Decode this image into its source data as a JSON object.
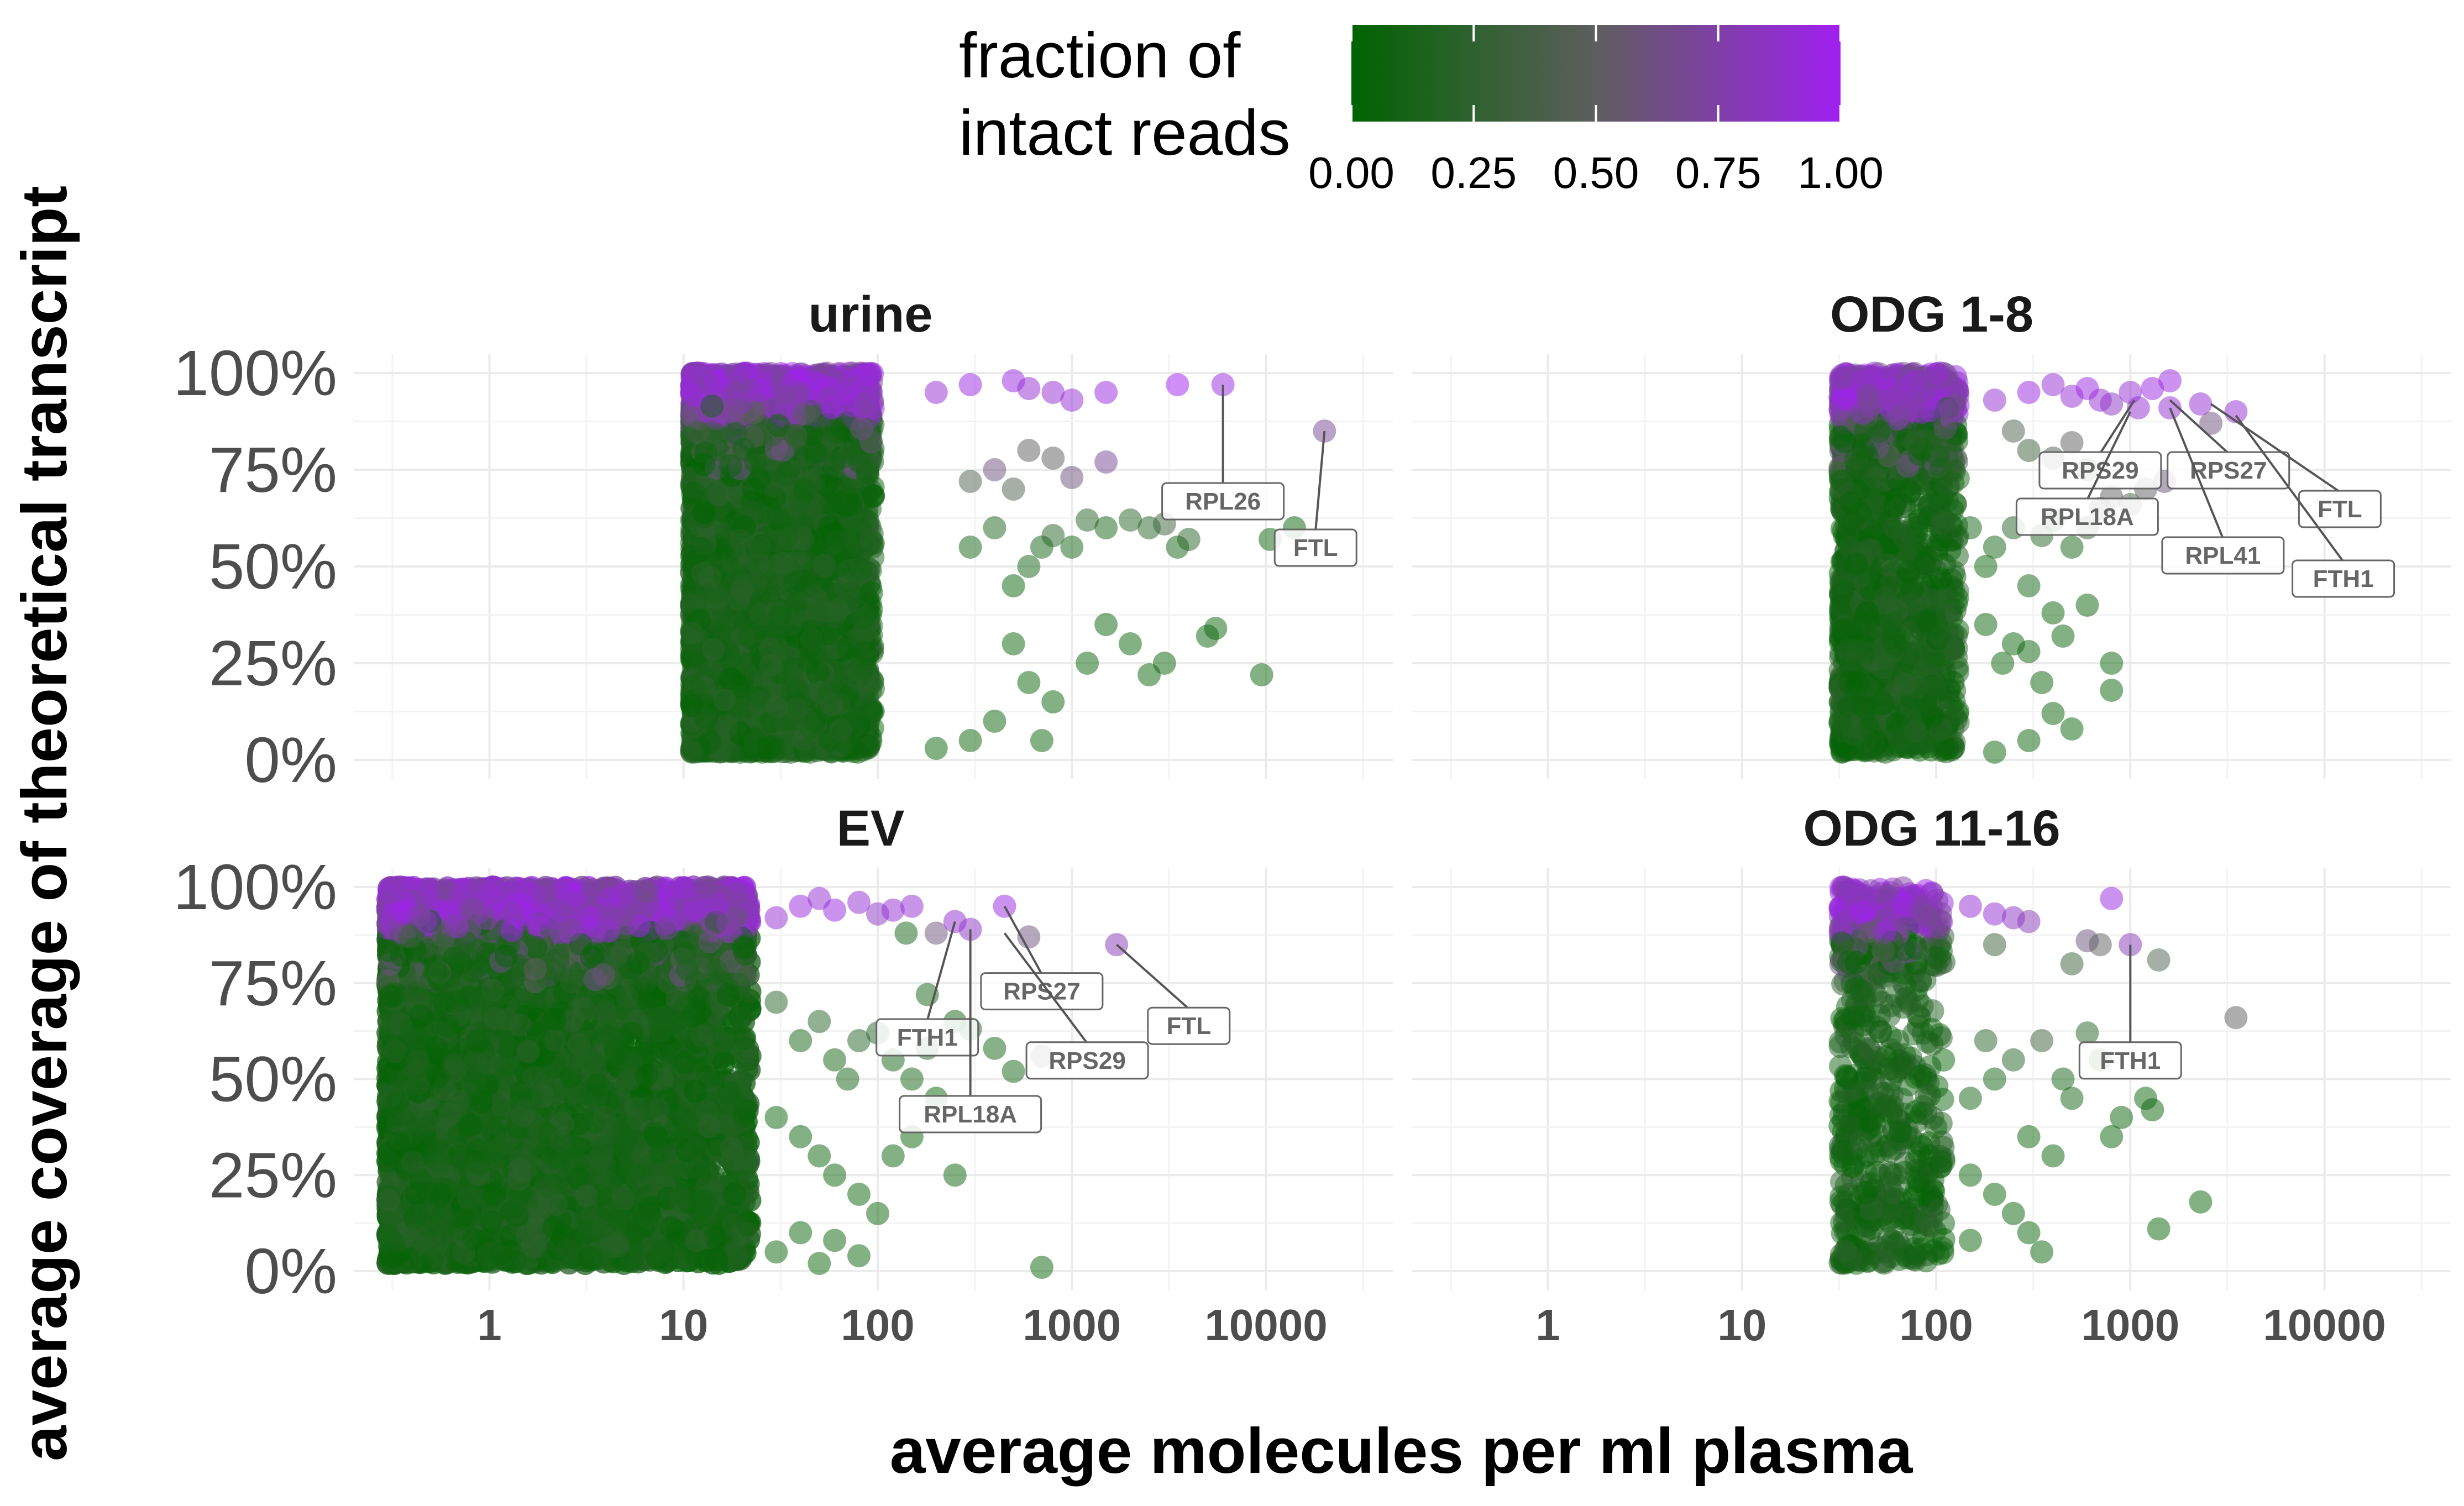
{
  "chart_data": {
    "type": "scatter",
    "title": "",
    "xlabel": "average molecules per ml plasma",
    "ylabel": "average coverage of theoretical transcript",
    "x_scale": "log10",
    "xlim": [
      0.2,
      45000
    ],
    "ylim": [
      0,
      1
    ],
    "x_ticks": [
      1,
      10,
      100,
      1000,
      10000
    ],
    "x_tick_labels": [
      "1",
      "10",
      "100",
      "1000",
      "10000"
    ],
    "y_ticks": [
      0,
      0.25,
      0.5,
      0.75,
      1
    ],
    "y_tick_labels": [
      "0%",
      "25%",
      "50%",
      "75%",
      "100%"
    ],
    "grid": true,
    "point_opacity": 0.5,
    "legend": {
      "title_line1": "fraction of",
      "title_line2": "intact reads",
      "position": "top",
      "tick_values": [
        0,
        0.25,
        0.5,
        0.75,
        1
      ],
      "tick_labels": [
        "0.00",
        "0.25",
        "0.50",
        "0.75",
        "1.00"
      ],
      "color_low": "#006400",
      "color_mid": "#5e5e5e",
      "color_high": "#a020f0"
    },
    "panels": [
      {
        "title": "urine",
        "dense_region": {
          "x_min": 11,
          "x_max": 95,
          "n_points": 5200
        },
        "points": [
          [
            300,
            0.55,
            0.1
          ],
          [
            400,
            0.6,
            0.15
          ],
          [
            500,
            0.45,
            0.05
          ],
          [
            600,
            0.5,
            0.1
          ],
          [
            700,
            0.55,
            0.1
          ],
          [
            800,
            0.58,
            0.2
          ],
          [
            1000,
            0.55,
            0.1
          ],
          [
            1200,
            0.62,
            0.2
          ],
          [
            1500,
            0.6,
            0.1
          ],
          [
            2000,
            0.62,
            0.2
          ],
          [
            2500,
            0.6,
            0.2
          ],
          [
            3000,
            0.61,
            0.3
          ],
          [
            3500,
            0.55,
            0.1
          ],
          [
            4000,
            0.57,
            0.2
          ],
          [
            500,
            0.3,
            0.05
          ],
          [
            600,
            0.2,
            0.05
          ],
          [
            800,
            0.15,
            0.05
          ],
          [
            1200,
            0.25,
            0.05
          ],
          [
            1500,
            0.35,
            0.05
          ],
          [
            2000,
            0.3,
            0.05
          ],
          [
            2500,
            0.22,
            0.05
          ],
          [
            3000,
            0.25,
            0.05
          ],
          [
            5000,
            0.32,
            0.05
          ],
          [
            5500,
            0.34,
            0.05
          ],
          [
            9500,
            0.22,
            0.05
          ],
          [
            300,
            0.72,
            0.4
          ],
          [
            400,
            0.75,
            0.6
          ],
          [
            500,
            0.7,
            0.4
          ],
          [
            600,
            0.8,
            0.5
          ],
          [
            800,
            0.78,
            0.5
          ],
          [
            1000,
            0.73,
            0.6
          ],
          [
            1500,
            0.77,
            0.7
          ],
          [
            200,
            0.95,
            0.9
          ],
          [
            300,
            0.97,
            0.95
          ],
          [
            500,
            0.98,
            0.95
          ],
          [
            600,
            0.96,
            0.9
          ],
          [
            800,
            0.95,
            0.9
          ],
          [
            1000,
            0.93,
            0.9
          ],
          [
            1500,
            0.95,
            0.95
          ],
          [
            3500,
            0.97,
            1.0
          ],
          [
            6000,
            0.97,
            0.95
          ],
          [
            20000,
            0.85,
            0.7
          ],
          [
            14000,
            0.6,
            0.05
          ],
          [
            10500,
            0.57,
            0.05
          ],
          [
            200,
            0.03,
            0.05
          ],
          [
            300,
            0.05,
            0.05
          ],
          [
            400,
            0.1,
            0.05
          ],
          [
            700,
            0.05,
            0.05
          ]
        ],
        "labels": [
          {
            "text": "RPL26",
            "x": 6000,
            "y": 0.97,
            "lx": 6000,
            "ly": 0.67
          },
          {
            "text": "FTL",
            "x": 20000,
            "y": 0.85,
            "lx": 18000,
            "ly": 0.55
          }
        ]
      },
      {
        "title": "ODG 1-8",
        "dense_region": {
          "x_min": 32,
          "x_max": 130,
          "n_points": 1700
        },
        "points": [
          [
            150,
            0.6,
            0.1
          ],
          [
            180,
            0.5,
            0.05
          ],
          [
            200,
            0.55,
            0.1
          ],
          [
            250,
            0.6,
            0.2
          ],
          [
            300,
            0.45,
            0.1
          ],
          [
            350,
            0.58,
            0.2
          ],
          [
            400,
            0.62,
            0.2
          ],
          [
            500,
            0.55,
            0.1
          ],
          [
            600,
            0.6,
            0.3
          ],
          [
            700,
            0.65,
            0.4
          ],
          [
            800,
            0.68,
            0.5
          ],
          [
            1000,
            0.66,
            0.4
          ],
          [
            1200,
            0.7,
            0.5
          ],
          [
            1500,
            0.72,
            0.6
          ],
          [
            180,
            0.35,
            0.05
          ],
          [
            220,
            0.25,
            0.05
          ],
          [
            250,
            0.3,
            0.05
          ],
          [
            300,
            0.28,
            0.05
          ],
          [
            350,
            0.2,
            0.05
          ],
          [
            400,
            0.38,
            0.05
          ],
          [
            450,
            0.32,
            0.05
          ],
          [
            600,
            0.4,
            0.05
          ],
          [
            800,
            0.25,
            0.05
          ],
          [
            800,
            0.18,
            0.05
          ],
          [
            500,
            0.08,
            0.05
          ],
          [
            300,
            0.05,
            0.05
          ],
          [
            200,
            0.02,
            0.05
          ],
          [
            400,
            0.12,
            0.05
          ],
          [
            200,
            0.93,
            0.9
          ],
          [
            300,
            0.95,
            0.95
          ],
          [
            400,
            0.97,
            0.9
          ],
          [
            500,
            0.94,
            0.9
          ],
          [
            600,
            0.96,
            0.95
          ],
          [
            700,
            0.93,
            0.9
          ],
          [
            800,
            0.92,
            0.85
          ],
          [
            1000,
            0.95,
            0.9
          ],
          [
            1100,
            0.91,
            0.9
          ],
          [
            1300,
            0.96,
            0.95
          ],
          [
            1600,
            0.98,
            0.95
          ],
          [
            2300,
            0.92,
            0.9
          ],
          [
            2600,
            0.87,
            0.6
          ],
          [
            3500,
            0.9,
            0.9
          ],
          [
            1600,
            0.91,
            0.9
          ],
          [
            250,
            0.85,
            0.4
          ],
          [
            300,
            0.8,
            0.3
          ],
          [
            400,
            0.78,
            0.4
          ],
          [
            500,
            0.82,
            0.5
          ],
          [
            600,
            0.75,
            0.3
          ]
        ],
        "labels": [
          {
            "text": "RPS29",
            "x": 1050,
            "y": 0.93,
            "lx": 700,
            "ly": 0.75
          },
          {
            "text": "RPL18A",
            "x": 1000,
            "y": 0.9,
            "lx": 600,
            "ly": 0.63
          },
          {
            "text": "RPS27",
            "x": 1600,
            "y": 0.93,
            "lx": 3200,
            "ly": 0.75
          },
          {
            "text": "RPL41",
            "x": 1600,
            "y": 0.91,
            "lx": 3000,
            "ly": 0.53
          },
          {
            "text": "FTL",
            "x": 2600,
            "y": 0.92,
            "lx": 12000,
            "ly": 0.65
          },
          {
            "text": "FTH1",
            "x": 3500,
            "y": 0.89,
            "lx": 12500,
            "ly": 0.47
          }
        ]
      },
      {
        "title": "EV",
        "dense_region": {
          "x_min": 0.3,
          "x_max": 22,
          "n_points": 10500
        },
        "points": [
          [
            30,
            0.7,
            0.2
          ],
          [
            40,
            0.6,
            0.1
          ],
          [
            50,
            0.65,
            0.2
          ],
          [
            60,
            0.55,
            0.1
          ],
          [
            70,
            0.5,
            0.1
          ],
          [
            80,
            0.6,
            0.2
          ],
          [
            100,
            0.62,
            0.2
          ],
          [
            120,
            0.55,
            0.1
          ],
          [
            150,
            0.5,
            0.1
          ],
          [
            180,
            0.58,
            0.2
          ],
          [
            200,
            0.45,
            0.05
          ],
          [
            250,
            0.25,
            0.05
          ],
          [
            30,
            0.4,
            0.05
          ],
          [
            40,
            0.35,
            0.05
          ],
          [
            50,
            0.3,
            0.05
          ],
          [
            60,
            0.25,
            0.05
          ],
          [
            80,
            0.2,
            0.05
          ],
          [
            100,
            0.15,
            0.05
          ],
          [
            120,
            0.3,
            0.05
          ],
          [
            150,
            0.35,
            0.05
          ],
          [
            30,
            0.05,
            0.05
          ],
          [
            40,
            0.1,
            0.05
          ],
          [
            50,
            0.02,
            0.05
          ],
          [
            60,
            0.08,
            0.05
          ],
          [
            80,
            0.04,
            0.05
          ],
          [
            700,
            0.01,
            0.05
          ],
          [
            30,
            0.92,
            0.9
          ],
          [
            40,
            0.95,
            0.95
          ],
          [
            50,
            0.97,
            0.9
          ],
          [
            60,
            0.94,
            0.95
          ],
          [
            80,
            0.96,
            0.9
          ],
          [
            100,
            0.93,
            0.85
          ],
          [
            120,
            0.94,
            0.9
          ],
          [
            150,
            0.95,
            0.9
          ],
          [
            200,
            0.88,
            0.6
          ],
          [
            250,
            0.91,
            0.9
          ],
          [
            300,
            0.89,
            0.85
          ],
          [
            450,
            0.95,
            0.95
          ],
          [
            600,
            0.87,
            0.6
          ],
          [
            1700,
            0.85,
            0.8
          ],
          [
            700,
            0.56,
            0.4
          ],
          [
            140,
            0.88,
            0.1
          ],
          [
            180,
            0.72,
            0.1
          ],
          [
            250,
            0.65,
            0.1
          ],
          [
            300,
            0.63,
            0.1
          ],
          [
            400,
            0.58,
            0.1
          ],
          [
            500,
            0.52,
            0.1
          ]
        ],
        "labels": [
          {
            "text": "RPS27",
            "x": 450,
            "y": 0.95,
            "lx": 700,
            "ly": 0.73
          },
          {
            "text": "FTH1",
            "x": 250,
            "y": 0.91,
            "lx": 180,
            "ly": 0.61
          },
          {
            "text": "RPL18A",
            "x": 300,
            "y": 0.89,
            "lx": 300,
            "ly": 0.41
          },
          {
            "text": "RPS29",
            "x": 450,
            "y": 0.88,
            "lx": 1200,
            "ly": 0.55
          },
          {
            "text": "FTL",
            "x": 1700,
            "y": 0.85,
            "lx": 4000,
            "ly": 0.64
          }
        ]
      },
      {
        "title": "ODG 11-16",
        "dense_region": {
          "x_min": 32,
          "x_max": 110,
          "n_points": 650
        },
        "points": [
          [
            150,
            0.45,
            0.1
          ],
          [
            180,
            0.6,
            0.2
          ],
          [
            200,
            0.5,
            0.1
          ],
          [
            250,
            0.55,
            0.2
          ],
          [
            300,
            0.35,
            0.05
          ],
          [
            350,
            0.6,
            0.3
          ],
          [
            400,
            0.3,
            0.05
          ],
          [
            450,
            0.5,
            0.1
          ],
          [
            500,
            0.45,
            0.1
          ],
          [
            600,
            0.62,
            0.2
          ],
          [
            700,
            0.55,
            0.1
          ],
          [
            800,
            0.35,
            0.05
          ],
          [
            900,
            0.4,
            0.05
          ],
          [
            150,
            0.25,
            0.05
          ],
          [
            200,
            0.2,
            0.05
          ],
          [
            250,
            0.15,
            0.05
          ],
          [
            300,
            0.1,
            0.05
          ],
          [
            350,
            0.05,
            0.05
          ],
          [
            150,
            0.08,
            0.05
          ],
          [
            1200,
            0.45,
            0.05
          ],
          [
            1300,
            0.42,
            0.05
          ],
          [
            1400,
            0.11,
            0.05
          ],
          [
            2300,
            0.18,
            0.05
          ],
          [
            3500,
            0.66,
            0.5
          ],
          [
            1400,
            0.81,
            0.4
          ],
          [
            500,
            0.8,
            0.3
          ],
          [
            600,
            0.86,
            0.6
          ],
          [
            700,
            0.85,
            0.5
          ],
          [
            800,
            0.97,
            0.95
          ],
          [
            1000,
            0.85,
            0.8
          ],
          [
            150,
            0.95,
            0.9
          ],
          [
            200,
            0.93,
            0.9
          ],
          [
            250,
            0.92,
            0.85
          ],
          [
            300,
            0.91,
            0.8
          ],
          [
            200,
            0.85,
            0.3
          ]
        ],
        "labels": [
          {
            "text": "FTH1",
            "x": 1000,
            "y": 0.85,
            "lx": 1000,
            "ly": 0.55
          }
        ]
      }
    ]
  }
}
